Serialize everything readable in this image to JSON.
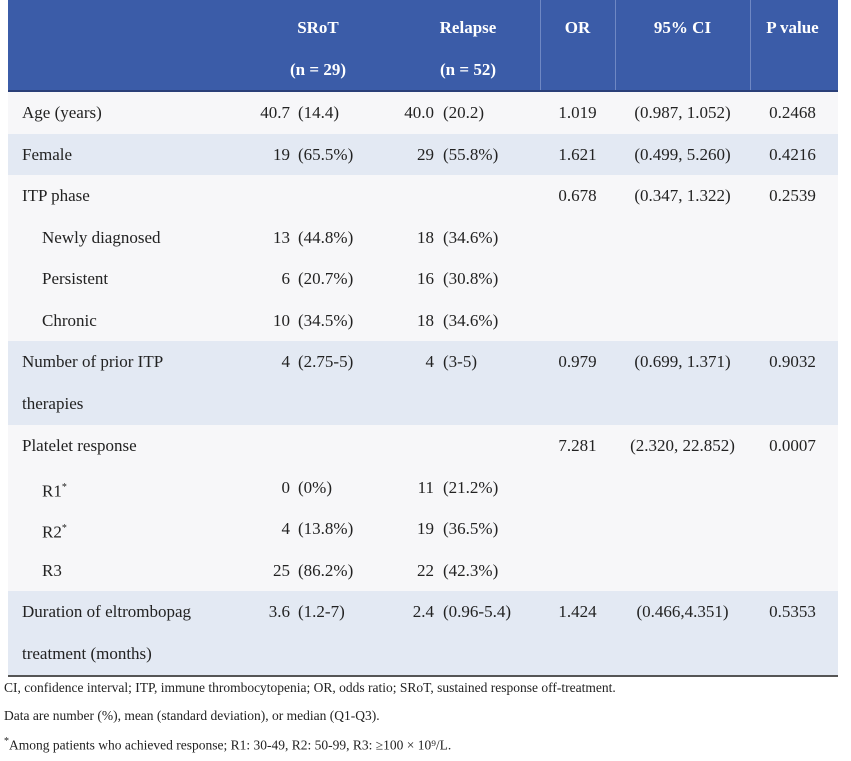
{
  "table": {
    "header": {
      "srot": [
        "SRoT",
        "(n = 29)"
      ],
      "relapse": [
        "Relapse",
        "(n = 52)"
      ],
      "or": "OR",
      "ci": "95% CI",
      "p": "P value"
    },
    "rows": [
      {
        "label": "Age (years)",
        "srot": [
          "40.7",
          "(14.4)"
        ],
        "relapse": [
          "40.0",
          "(20.2)"
        ],
        "or": "1.019",
        "ci": "(0.987, 1.052)",
        "p": "0.2468"
      },
      {
        "label": "Female",
        "srot": [
          "19",
          "(65.5%)"
        ],
        "relapse": [
          "29",
          "(55.8%)"
        ],
        "or": "1.621",
        "ci": "(0.499, 5.260)",
        "p": "0.4216"
      },
      {
        "label": "ITP phase",
        "or": "0.678",
        "ci": "(0.347, 1.322)",
        "p": "0.2539",
        "levels": [
          {
            "label": "Newly diagnosed",
            "srot": [
              "13",
              "(44.8%)"
            ],
            "relapse": [
              "18",
              "(34.6%)"
            ]
          },
          {
            "label": "Persistent",
            "srot": [
              "6",
              "(20.7%)"
            ],
            "relapse": [
              "16",
              "(30.8%)"
            ]
          },
          {
            "label": "Chronic",
            "srot": [
              "10",
              "(34.5%)"
            ],
            "relapse": [
              "18",
              "(34.6%)"
            ]
          }
        ]
      },
      {
        "label": "Number of prior ITP therapies",
        "srot": [
          "4",
          "(2.75-5)"
        ],
        "relapse": [
          "4",
          "(3-5)"
        ],
        "or": "0.979",
        "ci": "(0.699, 1.371)",
        "p": "0.9032"
      },
      {
        "label": "Platelet response",
        "or": "7.281",
        "ci": "(2.320, 22.852)",
        "p": "0.0007",
        "levels": [
          {
            "label": "R1",
            "note": "*",
            "srot": [
              "0",
              "(0%)"
            ],
            "relapse": [
              "11",
              "(21.2%)"
            ]
          },
          {
            "label": "R2",
            "note": "*",
            "srot": [
              "4",
              "(13.8%)"
            ],
            "relapse": [
              "19",
              "(36.5%)"
            ]
          },
          {
            "label": "R3",
            "srot": [
              "25",
              "(86.2%)"
            ],
            "relapse": [
              "22",
              "(42.3%)"
            ]
          }
        ]
      },
      {
        "label": "Duration of eltrombopag treatment (months)",
        "srot": [
          "3.6",
          "(1.2-7)"
        ],
        "relapse": [
          "2.4",
          "(0.96-5.4)"
        ],
        "or": "1.424",
        "ci": "(0.466,4.351)",
        "p": "0.5353"
      }
    ],
    "footnotes": [
      {
        "text": "CI, confidence interval; ITP, immune thrombocytopenia; OR, odds ratio; SRoT, sustained response off-treatment."
      },
      {
        "text": "Data are number (%), mean (standard deviation), or median (Q1-Q3)."
      },
      {
        "note": "*",
        "text": "Among patients who achieved response; R1: 30-49, R2: 50-99, R3: ≥100 × 10⁹/L."
      }
    ]
  }
}
